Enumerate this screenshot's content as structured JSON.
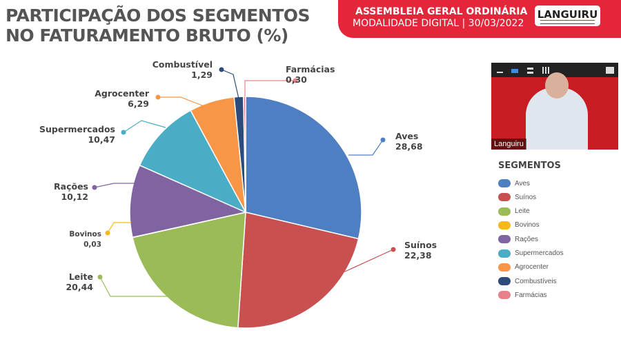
{
  "header": {
    "title_line1": "PARTICIPAÇÃO DOS SEGMENTOS",
    "title_line2": "NO FATURAMENTO BRUTO (%)",
    "banner_line1": "ASSEMBLEIA GERAL ORDINÁRIA",
    "banner_line2": "MODALIDADE DIGITAL | 30/03/2022",
    "logo": "LANGUIRU"
  },
  "video": {
    "participant_name": "Languiru"
  },
  "chart_data": {
    "type": "pie",
    "legend_title": "SEGMENTOS",
    "legend_placement": "right",
    "slices": [
      {
        "name": "Aves",
        "label": "Aves",
        "value_text": "28,68",
        "value": 28.68,
        "color": "#4f7fc3"
      },
      {
        "name": "Suínos",
        "label": "Suínos",
        "value_text": "22,38",
        "value": 22.38,
        "color": "#c85050"
      },
      {
        "name": "Leite",
        "label": "Leite",
        "value_text": "20,44",
        "value": 20.44,
        "color": "#9bbb59"
      },
      {
        "name": "Bovinos",
        "label": "Bovinos",
        "value_text": "0,03",
        "value": 0.03,
        "color": "#f7b919"
      },
      {
        "name": "Rações",
        "label": "Rações",
        "value_text": "10,12",
        "value": 10.12,
        "color": "#8064a2"
      },
      {
        "name": "Supermercados",
        "label": "Supermercados",
        "value_text": "10,47",
        "value": 10.47,
        "color": "#4bacc6"
      },
      {
        "name": "Agrocenter",
        "label": "Agrocenter",
        "value_text": "6,29",
        "value": 6.29,
        "color": "#f79646"
      },
      {
        "name": "Combustíveis",
        "label": "Combustível",
        "value_text": "1,29",
        "value": 1.29,
        "color": "#2c4a7a"
      },
      {
        "name": "Farmácias",
        "label": "Farmácias",
        "value_text": "0,30",
        "value": 0.3,
        "color": "#e8808a"
      }
    ]
  }
}
